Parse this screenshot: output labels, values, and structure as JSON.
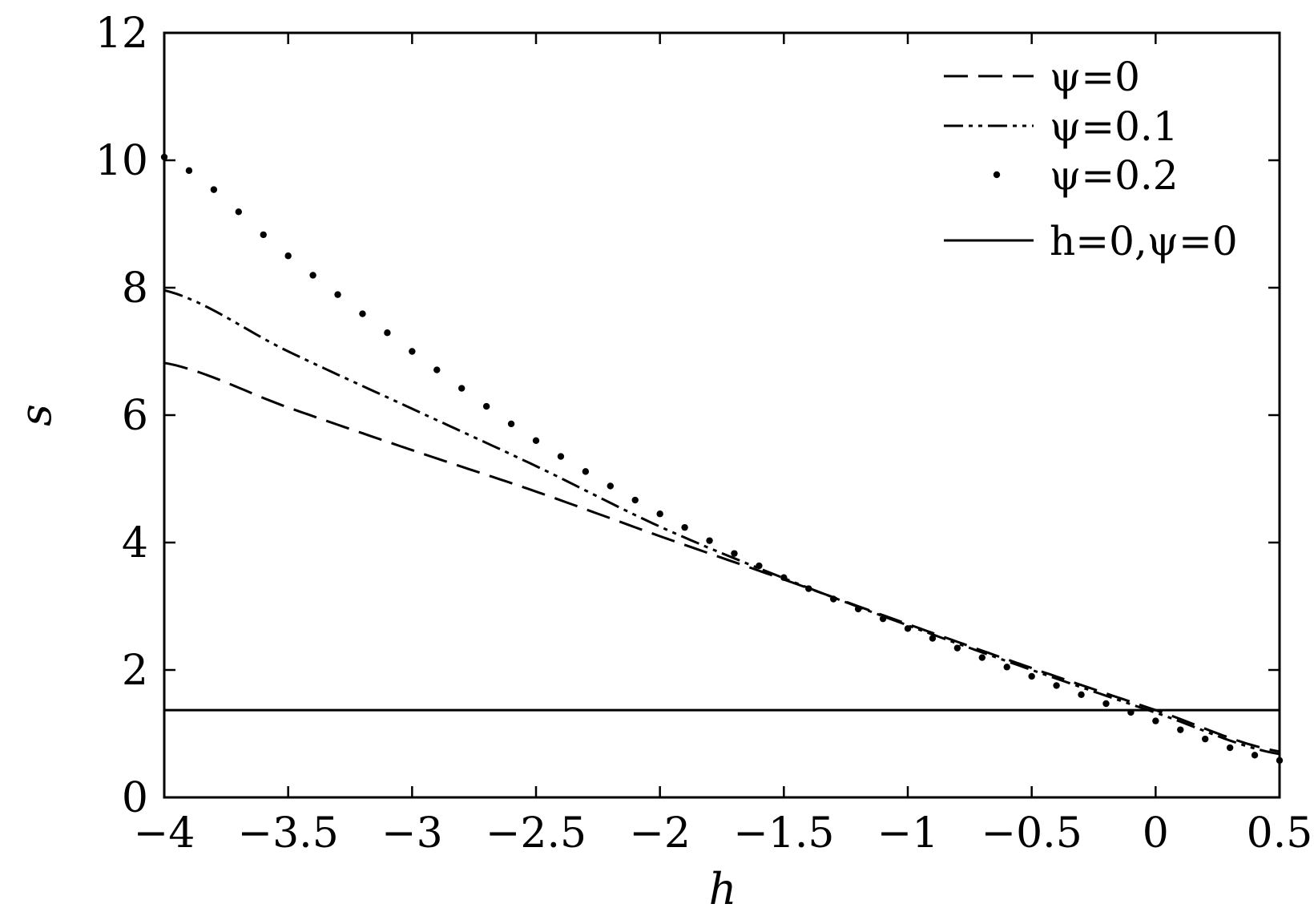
{
  "chart_data": {
    "type": "line",
    "title": "",
    "xlabel": "h",
    "ylabel": "s",
    "xlim": [
      -4,
      0.5
    ],
    "ylim": [
      0,
      12
    ],
    "grid": false,
    "legend_position": "top-right",
    "x_ticks": [
      -4,
      -3.5,
      -3,
      -2.5,
      -2,
      -1.5,
      -1,
      -0.5,
      0,
      0.5
    ],
    "x_tick_labels": [
      "−4",
      "−3.5",
      "−3",
      "−2.5",
      "−2",
      "−1.5",
      "−1",
      "−0.5",
      "0",
      "0.5"
    ],
    "y_ticks": [
      0,
      2,
      4,
      6,
      8,
      10,
      12
    ],
    "y_tick_labels": [
      "0",
      "2",
      "4",
      "6",
      "8",
      "10",
      "12"
    ],
    "series": [
      {
        "name": "ψ=0",
        "style": "dashed",
        "x": [
          -4,
          -3.5,
          -3,
          -2.5,
          -2,
          -1.5,
          -1,
          -0.5,
          0,
          0.5
        ],
        "y": [
          6.82,
          6.12,
          5.45,
          4.8,
          4.1,
          3.42,
          2.72,
          2.03,
          1.37,
          0.72
        ]
      },
      {
        "name": "ψ=0.1",
        "style": "dash-dot",
        "x": [
          -4,
          -3.5,
          -3,
          -2.5,
          -2,
          -1.5,
          -1,
          -0.5,
          0,
          0.5
        ],
        "y": [
          7.96,
          7.0,
          6.1,
          5.2,
          4.25,
          3.44,
          2.7,
          2.0,
          1.33,
          0.68
        ]
      },
      {
        "name": "ψ=0.2",
        "style": "dotted",
        "x": [
          -4,
          -3.5,
          -3,
          -2.5,
          -2,
          -1.5,
          -1,
          -0.5,
          0,
          0.5
        ],
        "y": [
          10.05,
          8.5,
          7.0,
          5.6,
          4.45,
          3.45,
          2.65,
          1.9,
          1.2,
          0.58
        ]
      },
      {
        "name": "h=0,ψ=0",
        "style": "solid",
        "x": [
          -4,
          0.5
        ],
        "y": [
          1.37,
          1.37
        ]
      }
    ]
  }
}
